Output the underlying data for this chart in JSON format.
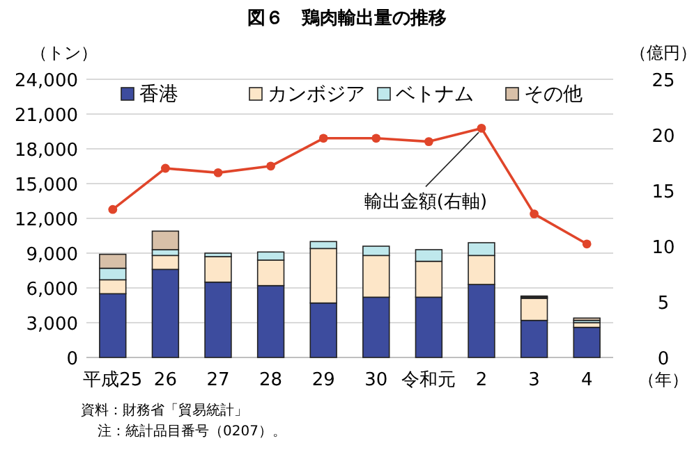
{
  "chart_data": {
    "type": "bar",
    "title": "図６　鶏肉輸出量の推移",
    "ylabel": "（トン）",
    "y2label": "（億円）",
    "xlabel": "（年）",
    "categories": [
      "平成25",
      "26",
      "27",
      "28",
      "29",
      "30",
      "令和元",
      "2",
      "3",
      "4"
    ],
    "stacked": true,
    "grid": "y",
    "legend": "top",
    "ylim": [
      0,
      24000
    ],
    "yticks": [
      {
        "value": 0,
        "label": "0"
      },
      {
        "value": 3000,
        "label": "3,000"
      },
      {
        "value": 6000,
        "label": "6,000"
      },
      {
        "value": 9000,
        "label": "9,000"
      },
      {
        "value": 12000,
        "label": "12,000"
      },
      {
        "value": 15000,
        "label": "15,000"
      },
      {
        "value": 18000,
        "label": "18,000"
      },
      {
        "value": 21000,
        "label": "21,000"
      },
      {
        "value": 24000,
        "label": "24,000"
      }
    ],
    "y2lim": [
      0,
      25
    ],
    "y2ticks": [
      0,
      5,
      10,
      15,
      20,
      25
    ],
    "series": [
      {
        "name": "香港",
        "color": "#3d4c9e",
        "values": [
          5500,
          7600,
          6500,
          6200,
          4700,
          5200,
          5200,
          6300,
          3200,
          2600
        ]
      },
      {
        "name": "カンボジア",
        "color": "#fde6c8",
        "values": [
          1200,
          1200,
          2200,
          2200,
          4700,
          3600,
          3100,
          2500,
          1900,
          400
        ]
      },
      {
        "name": "ベトナム",
        "color": "#bfe8ec",
        "values": [
          1000,
          500,
          300,
          700,
          600,
          800,
          1000,
          1100,
          100,
          200
        ]
      },
      {
        "name": "その他",
        "color": "#d8c0a8",
        "values": [
          1200,
          1600,
          null,
          0,
          0,
          0,
          0,
          0,
          100,
          200
        ]
      },
      {
        "name": "輸出金額(右軸)",
        "type": "line",
        "axis": "y2",
        "color": "#e0452a",
        "marker": "circle",
        "values": [
          13.3,
          17.0,
          16.6,
          17.2,
          19.7,
          19.7,
          19.4,
          20.6,
          12.9,
          10.2
        ]
      }
    ],
    "annotations": [
      "資料：財務省「貿易統計」",
      "注：統計品目番号（0207）。"
    ]
  }
}
